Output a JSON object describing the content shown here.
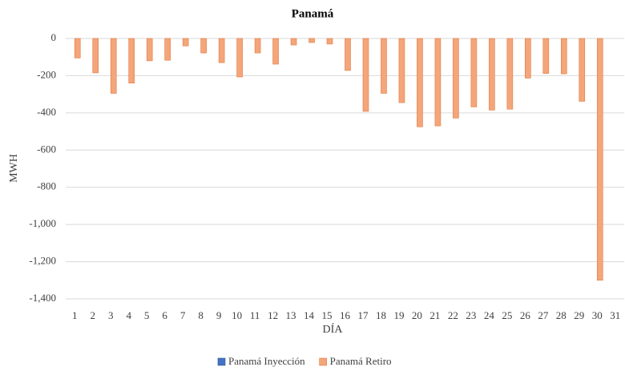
{
  "chart_data": {
    "type": "bar",
    "title": "Panamá",
    "x_label": "DÍA",
    "y_label": "MWH",
    "categories": [
      "1",
      "2",
      "3",
      "4",
      "5",
      "6",
      "7",
      "8",
      "9",
      "10",
      "11",
      "12",
      "13",
      "14",
      "15",
      "16",
      "17",
      "18",
      "19",
      "20",
      "21",
      "22",
      "23",
      "24",
      "25",
      "26",
      "27",
      "28",
      "29",
      "30",
      "31"
    ],
    "series": [
      {
        "name": "Panamá Inyección",
        "color": "#4472c4",
        "values": [
          0,
          0,
          0,
          0,
          0,
          0,
          0,
          0,
          0,
          0,
          0,
          0,
          0,
          0,
          0,
          0,
          0,
          0,
          0,
          0,
          0,
          0,
          0,
          0,
          0,
          0,
          0,
          0,
          0,
          0,
          null
        ]
      },
      {
        "name": "Panamá Retiro",
        "color": "#f4a57a",
        "values": [
          -105,
          -185,
          -295,
          -240,
          -120,
          -117,
          -40,
          -78,
          -130,
          -207,
          -78,
          -138,
          -35,
          -22,
          -30,
          -172,
          -392,
          -295,
          -345,
          -475,
          -470,
          -428,
          -368,
          -385,
          -380,
          -213,
          -188,
          -190,
          -338,
          -1300,
          null
        ]
      }
    ],
    "ylim": [
      -1400,
      0
    ],
    "yticks": [
      0,
      -200,
      -400,
      -600,
      -800,
      {
        "value": -1000,
        "label": "-1,000"
      },
      {
        "value": -1200,
        "label": "-1,200"
      },
      {
        "value": -1400,
        "label": "-1,400"
      }
    ],
    "grid": true,
    "legend": "bottom"
  }
}
